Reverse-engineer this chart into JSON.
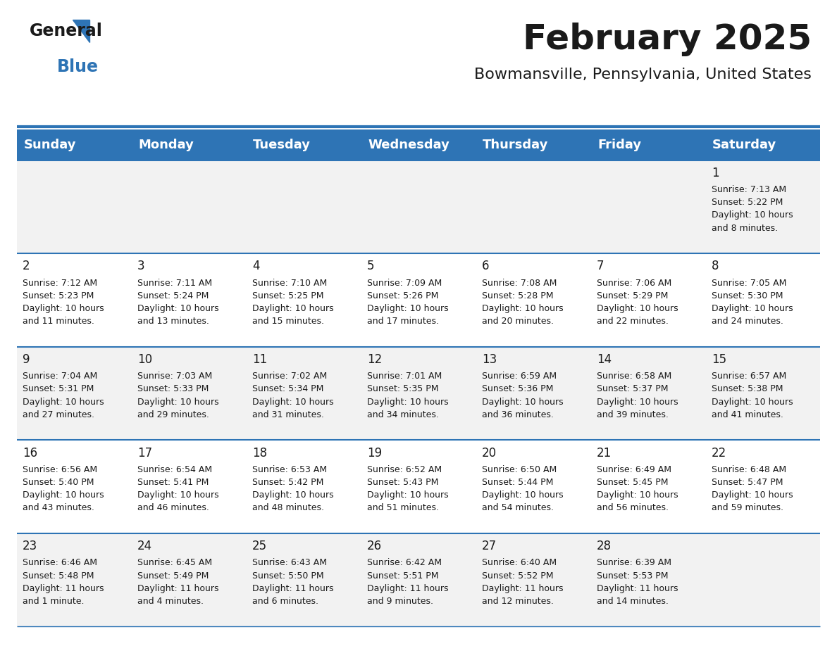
{
  "title": "February 2025",
  "subtitle": "Bowmansville, Pennsylvania, United States",
  "header_bg": "#2e74b5",
  "header_text_color": "#ffffff",
  "row_bg_odd": "#f2f2f2",
  "row_bg_even": "#ffffff",
  "separator_color": "#2e74b5",
  "day_headers": [
    "Sunday",
    "Monday",
    "Tuesday",
    "Wednesday",
    "Thursday",
    "Friday",
    "Saturday"
  ],
  "days": [
    {
      "day": 1,
      "col": 6,
      "row": 0,
      "sunrise": "7:13 AM",
      "sunset": "5:22 PM",
      "daylight": "10 hours and 8 minutes."
    },
    {
      "day": 2,
      "col": 0,
      "row": 1,
      "sunrise": "7:12 AM",
      "sunset": "5:23 PM",
      "daylight": "10 hours and 11 minutes."
    },
    {
      "day": 3,
      "col": 1,
      "row": 1,
      "sunrise": "7:11 AM",
      "sunset": "5:24 PM",
      "daylight": "10 hours and 13 minutes."
    },
    {
      "day": 4,
      "col": 2,
      "row": 1,
      "sunrise": "7:10 AM",
      "sunset": "5:25 PM",
      "daylight": "10 hours and 15 minutes."
    },
    {
      "day": 5,
      "col": 3,
      "row": 1,
      "sunrise": "7:09 AM",
      "sunset": "5:26 PM",
      "daylight": "10 hours and 17 minutes."
    },
    {
      "day": 6,
      "col": 4,
      "row": 1,
      "sunrise": "7:08 AM",
      "sunset": "5:28 PM",
      "daylight": "10 hours and 20 minutes."
    },
    {
      "day": 7,
      "col": 5,
      "row": 1,
      "sunrise": "7:06 AM",
      "sunset": "5:29 PM",
      "daylight": "10 hours and 22 minutes."
    },
    {
      "day": 8,
      "col": 6,
      "row": 1,
      "sunrise": "7:05 AM",
      "sunset": "5:30 PM",
      "daylight": "10 hours and 24 minutes."
    },
    {
      "day": 9,
      "col": 0,
      "row": 2,
      "sunrise": "7:04 AM",
      "sunset": "5:31 PM",
      "daylight": "10 hours and 27 minutes."
    },
    {
      "day": 10,
      "col": 1,
      "row": 2,
      "sunrise": "7:03 AM",
      "sunset": "5:33 PM",
      "daylight": "10 hours and 29 minutes."
    },
    {
      "day": 11,
      "col": 2,
      "row": 2,
      "sunrise": "7:02 AM",
      "sunset": "5:34 PM",
      "daylight": "10 hours and 31 minutes."
    },
    {
      "day": 12,
      "col": 3,
      "row": 2,
      "sunrise": "7:01 AM",
      "sunset": "5:35 PM",
      "daylight": "10 hours and 34 minutes."
    },
    {
      "day": 13,
      "col": 4,
      "row": 2,
      "sunrise": "6:59 AM",
      "sunset": "5:36 PM",
      "daylight": "10 hours and 36 minutes."
    },
    {
      "day": 14,
      "col": 5,
      "row": 2,
      "sunrise": "6:58 AM",
      "sunset": "5:37 PM",
      "daylight": "10 hours and 39 minutes."
    },
    {
      "day": 15,
      "col": 6,
      "row": 2,
      "sunrise": "6:57 AM",
      "sunset": "5:38 PM",
      "daylight": "10 hours and 41 minutes."
    },
    {
      "day": 16,
      "col": 0,
      "row": 3,
      "sunrise": "6:56 AM",
      "sunset": "5:40 PM",
      "daylight": "10 hours and 43 minutes."
    },
    {
      "day": 17,
      "col": 1,
      "row": 3,
      "sunrise": "6:54 AM",
      "sunset": "5:41 PM",
      "daylight": "10 hours and 46 minutes."
    },
    {
      "day": 18,
      "col": 2,
      "row": 3,
      "sunrise": "6:53 AM",
      "sunset": "5:42 PM",
      "daylight": "10 hours and 48 minutes."
    },
    {
      "day": 19,
      "col": 3,
      "row": 3,
      "sunrise": "6:52 AM",
      "sunset": "5:43 PM",
      "daylight": "10 hours and 51 minutes."
    },
    {
      "day": 20,
      "col": 4,
      "row": 3,
      "sunrise": "6:50 AM",
      "sunset": "5:44 PM",
      "daylight": "10 hours and 54 minutes."
    },
    {
      "day": 21,
      "col": 5,
      "row": 3,
      "sunrise": "6:49 AM",
      "sunset": "5:45 PM",
      "daylight": "10 hours and 56 minutes."
    },
    {
      "day": 22,
      "col": 6,
      "row": 3,
      "sunrise": "6:48 AM",
      "sunset": "5:47 PM",
      "daylight": "10 hours and 59 minutes."
    },
    {
      "day": 23,
      "col": 0,
      "row": 4,
      "sunrise": "6:46 AM",
      "sunset": "5:48 PM",
      "daylight": "11 hours and 1 minute."
    },
    {
      "day": 24,
      "col": 1,
      "row": 4,
      "sunrise": "6:45 AM",
      "sunset": "5:49 PM",
      "daylight": "11 hours and 4 minutes."
    },
    {
      "day": 25,
      "col": 2,
      "row": 4,
      "sunrise": "6:43 AM",
      "sunset": "5:50 PM",
      "daylight": "11 hours and 6 minutes."
    },
    {
      "day": 26,
      "col": 3,
      "row": 4,
      "sunrise": "6:42 AM",
      "sunset": "5:51 PM",
      "daylight": "11 hours and 9 minutes."
    },
    {
      "day": 27,
      "col": 4,
      "row": 4,
      "sunrise": "6:40 AM",
      "sunset": "5:52 PM",
      "daylight": "11 hours and 12 minutes."
    },
    {
      "day": 28,
      "col": 5,
      "row": 4,
      "sunrise": "6:39 AM",
      "sunset": "5:53 PM",
      "daylight": "11 hours and 14 minutes."
    }
  ],
  "num_rows": 5,
  "num_cols": 7,
  "title_fontsize": 36,
  "subtitle_fontsize": 16,
  "header_fontsize": 13,
  "day_num_fontsize": 12,
  "cell_text_fontsize": 9,
  "logo_general_color": "#1a1a1a",
  "logo_blue_color": "#2e74b5"
}
